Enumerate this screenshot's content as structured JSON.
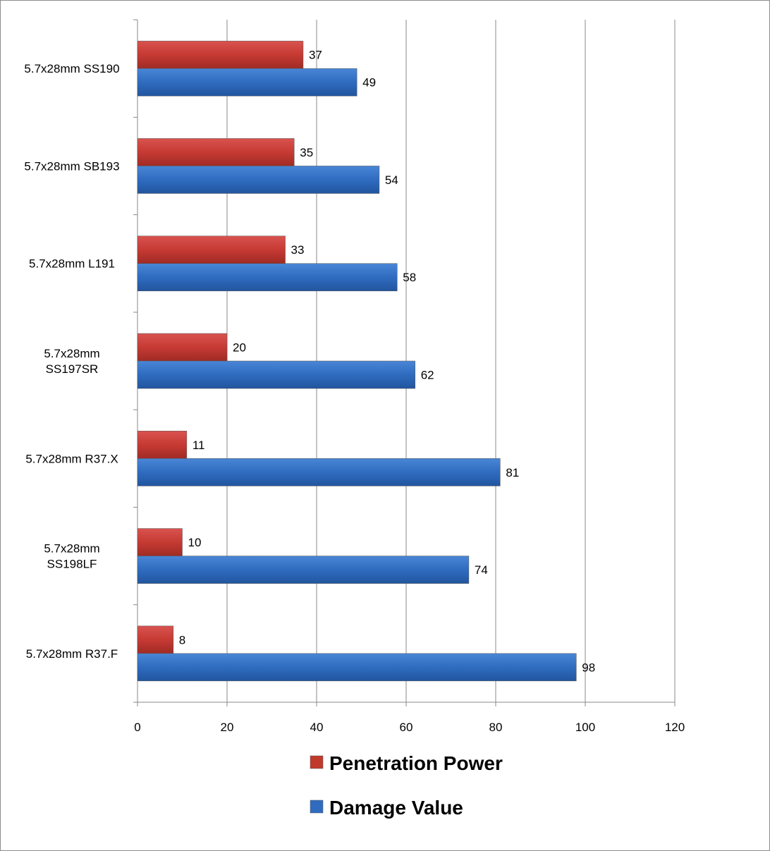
{
  "chart_data": {
    "type": "bar",
    "orientation": "horizontal",
    "title": "",
    "xlabel": "",
    "ylabel": "",
    "xlim": [
      0,
      120
    ],
    "x_ticks": [
      "0",
      "20",
      "40",
      "60",
      "80",
      "100",
      "120"
    ],
    "grid": "vertical",
    "legend_position": "bottom",
    "categories": [
      [
        "5.7x28mm SS190"
      ],
      [
        "5.7x28mm SB193"
      ],
      [
        "5.7x28mm L191"
      ],
      [
        "5.7x28mm",
        "SS197SR"
      ],
      [
        "5.7x28mm R37.X"
      ],
      [
        "5.7x28mm",
        "SS198LF"
      ],
      [
        "5.7x28mm R37.F"
      ]
    ],
    "series": [
      {
        "name": "Penetration Power",
        "color": "#c0392b",
        "values": [
          37,
          35,
          33,
          20,
          11,
          10,
          8
        ]
      },
      {
        "name": "Damage Value",
        "color": "#2f6cc0",
        "values": [
          49,
          54,
          58,
          62,
          81,
          74,
          98
        ]
      }
    ]
  }
}
